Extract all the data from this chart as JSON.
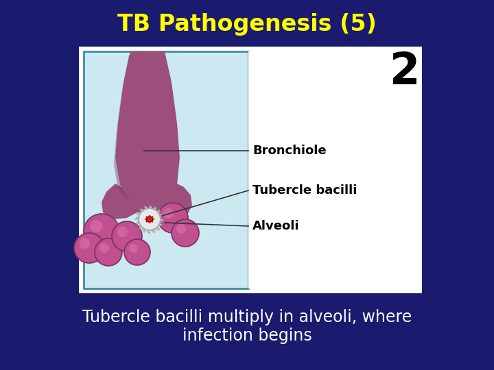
{
  "background_color": "#1a1a6e",
  "title": "TB Pathogenesis (5)",
  "title_color": "#ffff00",
  "title_fontsize": 24,
  "title_fontweight": "bold",
  "subtitle_line1": "Tubercle bacilli multiply in alveoli, where",
  "subtitle_line2": "infection begins",
  "subtitle_color": "#ffffff",
  "subtitle_fontsize": 17,
  "number_label": "2",
  "number_color": "#000000",
  "number_fontsize": 46,
  "label_bronchiole": "Bronchiole",
  "label_tubercle": "Tubercle bacilli",
  "label_alveoli": "Alveoli",
  "label_color": "#000000",
  "label_fontsize": 13,
  "label_fontweight": "bold",
  "box_bg": "#ffffff",
  "left_panel_bg": "#cce8f0",
  "left_panel_border": "#4488aa",
  "bronchiole_fill": "#9b4f7a",
  "bronchiole_edge": "#7a3060",
  "alveoli_fill": "#c05090",
  "alveoli_edge": "#7a3060"
}
